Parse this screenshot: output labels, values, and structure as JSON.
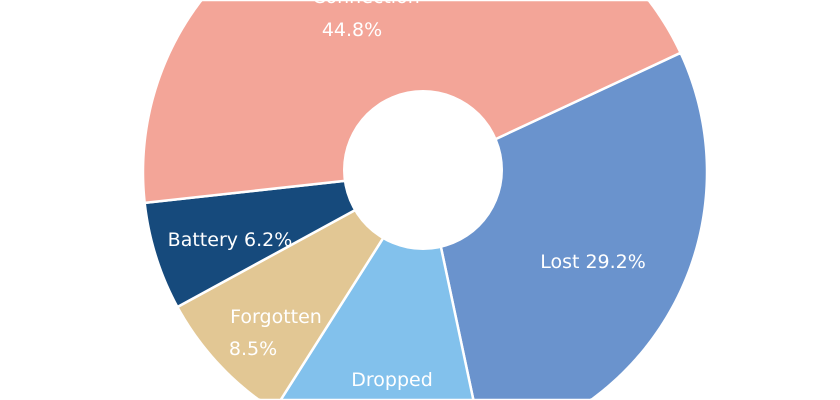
{
  "chart_data": {
    "type": "pie",
    "donut": true,
    "title": "",
    "start_angle_deg_clockwise_from_top": 65,
    "slices": [
      {
        "label": "Lost",
        "value": 29.2,
        "text": "Lost 29.2%",
        "color": "#6A93CD"
      },
      {
        "label": "Dropped",
        "value": 11.3,
        "text": "Dropped",
        "color": "#82C1EC"
      },
      {
        "label": "Forgotten",
        "value": 8.5,
        "text": "Forgotten",
        "text2": "8.5%",
        "color": "#E2C794"
      },
      {
        "label": "Battery",
        "value": 6.2,
        "text": "Battery 6.2%",
        "color": "#164A7C"
      },
      {
        "label": "Connection",
        "value": 44.8,
        "text": "Connection",
        "text2": "44.8%",
        "color": "#F3A598"
      }
    ]
  }
}
